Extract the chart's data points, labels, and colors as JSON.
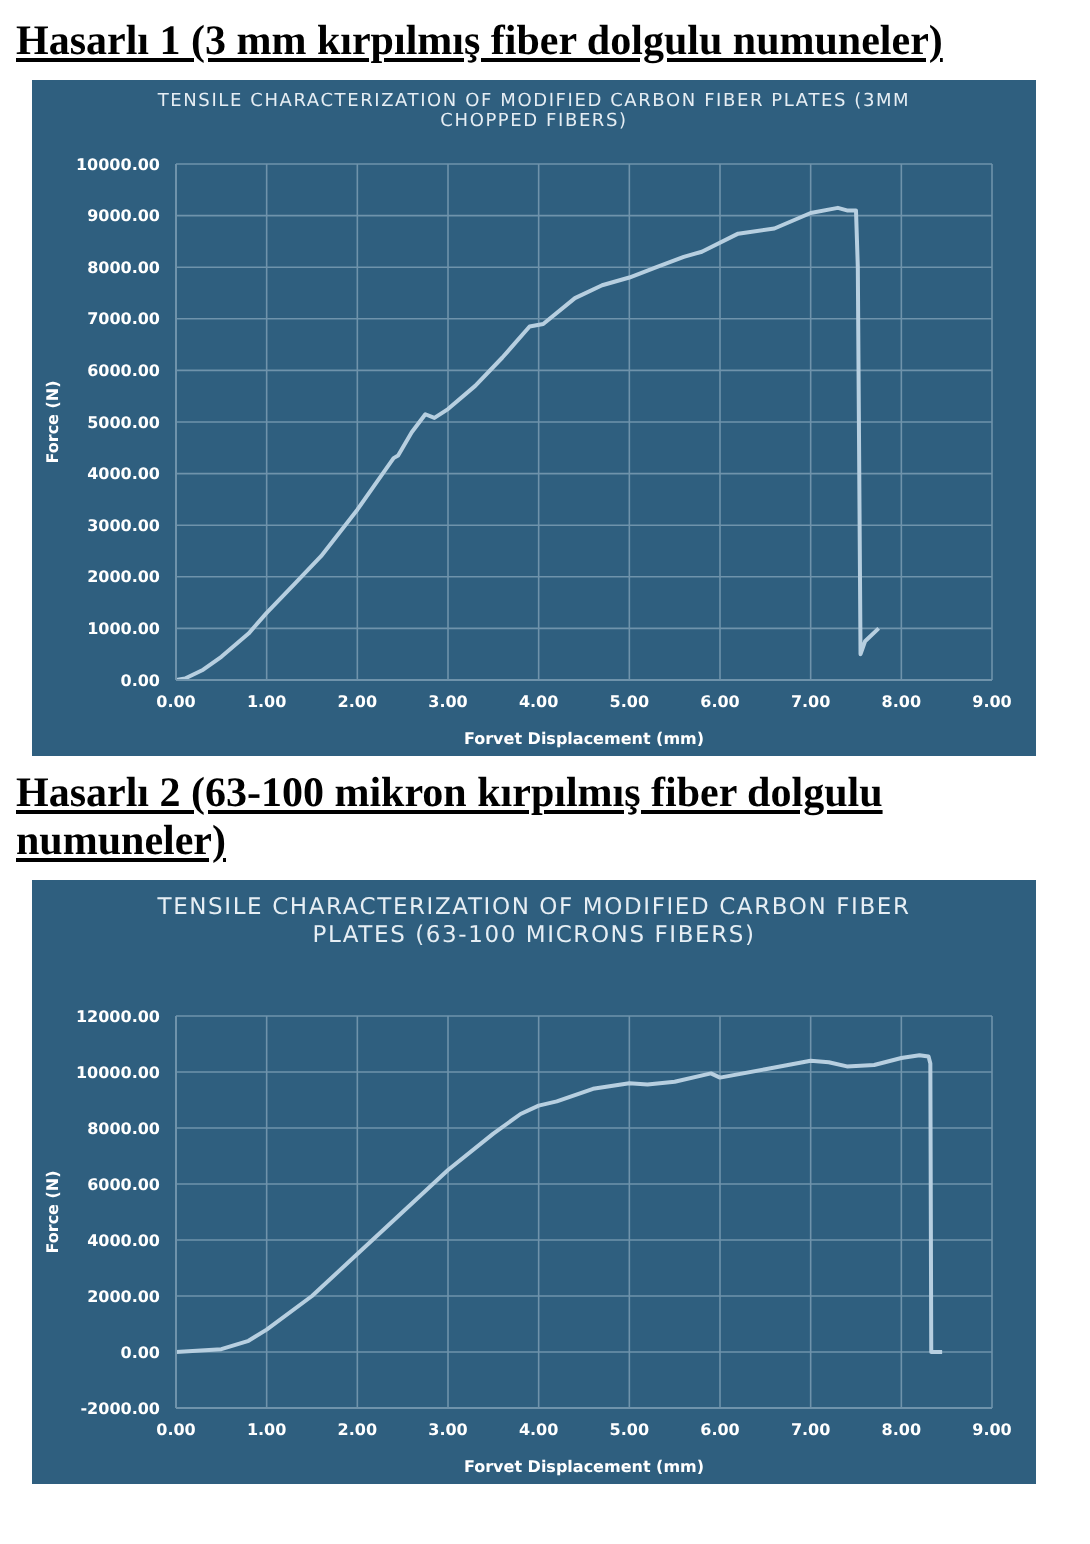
{
  "chart_data": [
    {
      "type": "line",
      "title": "Hasarlı 1 (3 mm kırpılmış fiber dolgulu numuneler)",
      "subtitle": "TENSILE CHARACTERIZATION OF MODIFIED CARBON FIBER PLATES (3MM CHOPPED FIBERS)",
      "xlabel": "Forvet Displacement (mm)",
      "ylabel": "Force (N)",
      "series": [
        {
          "color": "#b7cfe0",
          "x": [
            0,
            0.1,
            0.3,
            0.5,
            0.8,
            1.0,
            1.3,
            1.6,
            2.0,
            2.2,
            2.4,
            2.45,
            2.6,
            2.75,
            2.85,
            3.0,
            3.3,
            3.6,
            3.9,
            4.05,
            4.4,
            4.7,
            5.0,
            5.3,
            5.6,
            5.8,
            6.2,
            6.6,
            7.0,
            7.3,
            7.4,
            7.5,
            7.52,
            7.55,
            7.6,
            7.75
          ],
          "values": [
            0,
            30,
            200,
            450,
            900,
            1300,
            1850,
            2400,
            3300,
            3800,
            4300,
            4350,
            4800,
            5150,
            5080,
            5250,
            5700,
            6250,
            6850,
            6900,
            7400,
            7650,
            7800,
            8000,
            8200,
            8300,
            8650,
            8750,
            9050,
            9150,
            9100,
            9100,
            8000,
            500,
            750,
            1000
          ]
        }
      ],
      "xlim": [
        0,
        9
      ],
      "xticks": [
        {
          "value": 0,
          "label": "0.00"
        },
        {
          "value": 1,
          "label": "1.00"
        },
        {
          "value": 2,
          "label": "2.00"
        },
        {
          "value": 3,
          "label": "3.00"
        },
        {
          "value": 4,
          "label": "4.00"
        },
        {
          "value": 5,
          "label": "5.00"
        },
        {
          "value": 6,
          "label": "6.00"
        },
        {
          "value": 7,
          "label": "7.00"
        },
        {
          "value": 8,
          "label": "8.00"
        },
        {
          "value": 9,
          "label": "9.00"
        }
      ],
      "ylim": [
        0,
        10000
      ],
      "yticks": [
        {
          "value": 0,
          "label": "0.00"
        },
        {
          "value": 1000,
          "label": "1000.00"
        },
        {
          "value": 2000,
          "label": "2000.00"
        },
        {
          "value": 3000,
          "label": "3000.00"
        },
        {
          "value": 4000,
          "label": "4000.00"
        },
        {
          "value": 5000,
          "label": "5000.00"
        },
        {
          "value": 6000,
          "label": "6000.00"
        },
        {
          "value": 7000,
          "label": "7000.00"
        },
        {
          "value": 8000,
          "label": "8000.00"
        },
        {
          "value": 9000,
          "label": "9000.00"
        },
        {
          "value": 10000,
          "label": "10000.00"
        }
      ],
      "grid": true,
      "legend": false,
      "marker": "none",
      "line_style": "solid"
    },
    {
      "type": "line",
      "title": "Hasarlı 2 (63-100 mikron kırpılmış fiber dolgulu numuneler)",
      "subtitle": "TENSILE CHARACTERIZATION OF MODIFIED CARBON FIBER PLATES (63-100 MICRONS FIBERS)",
      "xlabel": "Forvet Displacement (mm)",
      "ylabel": "Force (N)",
      "series": [
        {
          "color": "#b7cfe0",
          "x": [
            0,
            0.5,
            0.8,
            1.0,
            1.5,
            2.0,
            2.5,
            3.0,
            3.5,
            3.8,
            4.0,
            4.2,
            4.6,
            5.0,
            5.2,
            5.5,
            5.9,
            6.0,
            6.5,
            7.0,
            7.2,
            7.4,
            7.7,
            8.0,
            8.2,
            8.3,
            8.32,
            8.33,
            8.45
          ],
          "values": [
            0,
            100,
            400,
            800,
            2000,
            3500,
            5000,
            6500,
            7800,
            8500,
            8800,
            8950,
            9400,
            9600,
            9550,
            9650,
            9950,
            9800,
            10100,
            10400,
            10350,
            10200,
            10250,
            10500,
            10600,
            10550,
            10300,
            0,
            0
          ]
        }
      ],
      "xlim": [
        0,
        9
      ],
      "xticks": [
        {
          "value": 0,
          "label": "0.00"
        },
        {
          "value": 1,
          "label": "1.00"
        },
        {
          "value": 2,
          "label": "2.00"
        },
        {
          "value": 3,
          "label": "3.00"
        },
        {
          "value": 4,
          "label": "4.00"
        },
        {
          "value": 5,
          "label": "5.00"
        },
        {
          "value": 6,
          "label": "6.00"
        },
        {
          "value": 7,
          "label": "7.00"
        },
        {
          "value": 8,
          "label": "8.00"
        },
        {
          "value": 9,
          "label": "9.00"
        }
      ],
      "ylim": [
        -2000,
        12000
      ],
      "yticks": [
        {
          "value": -2000,
          "label": "-2000.00"
        },
        {
          "value": 0,
          "label": "0.00"
        },
        {
          "value": 2000,
          "label": "2000.00"
        },
        {
          "value": 4000,
          "label": "4000.00"
        },
        {
          "value": 6000,
          "label": "6000.00"
        },
        {
          "value": 8000,
          "label": "8000.00"
        },
        {
          "value": 10000,
          "label": "10000.00"
        },
        {
          "value": 12000,
          "label": "12000.00"
        }
      ],
      "grid": true,
      "legend": false,
      "marker": "none",
      "line_style": "solid"
    }
  ]
}
